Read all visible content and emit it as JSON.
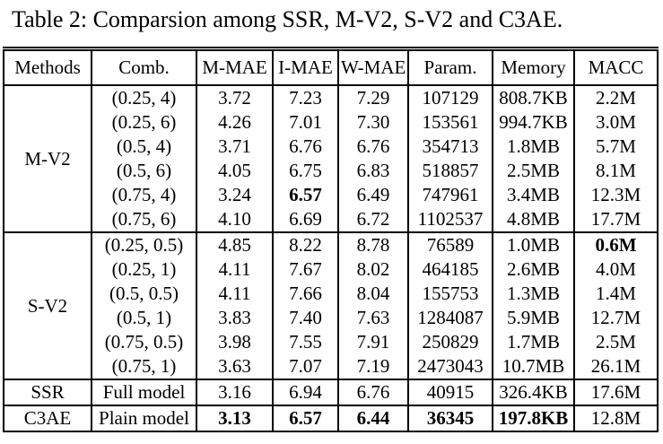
{
  "colors": {
    "text": "#000000",
    "background": "#ffffff",
    "rule": "#000000"
  },
  "caption": {
    "text": "Table 2: Comparsion among SSR, M-V2, S-V2 and C3AE."
  },
  "table": {
    "columns": [
      "Methods",
      "Comb.",
      "M-MAE",
      "I-MAE",
      "W-MAE",
      "Param.",
      "Memory",
      "MACC"
    ],
    "groups": [
      {
        "method": "M-V2",
        "rows": [
          {
            "cells": [
              "(0.25, 4)",
              "3.72",
              "7.23",
              "7.29",
              "107129",
              "808.7KB",
              "2.2M"
            ],
            "bold": []
          },
          {
            "cells": [
              "(0.25, 6)",
              "4.26",
              "7.01",
              "7.30",
              "153561",
              "994.7KB",
              "3.0M"
            ],
            "bold": []
          },
          {
            "cells": [
              "(0.5, 4)",
              "3.71",
              "6.76",
              "6.76",
              "354713",
              "1.8MB",
              "5.7M"
            ],
            "bold": []
          },
          {
            "cells": [
              "(0.5, 6)",
              "4.05",
              "6.75",
              "6.83",
              "518857",
              "2.5MB",
              "8.1M"
            ],
            "bold": []
          },
          {
            "cells": [
              "(0.75, 4)",
              "3.24",
              "6.57",
              "6.49",
              "747961",
              "3.4MB",
              "12.3M"
            ],
            "bold": [
              2
            ]
          },
          {
            "cells": [
              "(0.75, 6)",
              "4.10",
              "6.69",
              "6.72",
              "1102537",
              "4.8MB",
              "17.7M"
            ],
            "bold": []
          }
        ]
      },
      {
        "method": "S-V2",
        "rows": [
          {
            "cells": [
              "(0.25, 0.5)",
              "4.85",
              "8.22",
              "8.78",
              "76589",
              "1.0MB",
              "0.6M"
            ],
            "bold": [
              6
            ]
          },
          {
            "cells": [
              "(0.25, 1)",
              "4.11",
              "7.67",
              "8.02",
              "464185",
              "2.6MB",
              "4.0M"
            ],
            "bold": []
          },
          {
            "cells": [
              "(0.5, 0.5)",
              "4.11",
              "7.66",
              "8.04",
              "155753",
              "1.3MB",
              "1.4M"
            ],
            "bold": []
          },
          {
            "cells": [
              "(0.5, 1)",
              "3.83",
              "7.40",
              "7.63",
              "1284087",
              "5.9MB",
              "12.7M"
            ],
            "bold": []
          },
          {
            "cells": [
              "(0.75, 0.5)",
              "3.98",
              "7.55",
              "7.91",
              "250829",
              "1.7MB",
              "2.5M"
            ],
            "bold": []
          },
          {
            "cells": [
              "(0.75, 1)",
              "3.63",
              "7.07",
              "7.19",
              "2473043",
              "10.7MB",
              "26.1M"
            ],
            "bold": []
          }
        ]
      },
      {
        "method": "SSR",
        "rows": [
          {
            "cells": [
              "Full model",
              "3.16",
              "6.94",
              "6.76",
              "40915",
              "326.4KB",
              "17.6M"
            ],
            "bold": []
          }
        ]
      },
      {
        "method": "C3AE",
        "rows": [
          {
            "cells": [
              "Plain model",
              "3.13",
              "6.57",
              "6.44",
              "36345",
              "197.8KB",
              "12.8M"
            ],
            "bold": [
              1,
              2,
              3,
              4,
              5
            ]
          }
        ]
      }
    ]
  }
}
